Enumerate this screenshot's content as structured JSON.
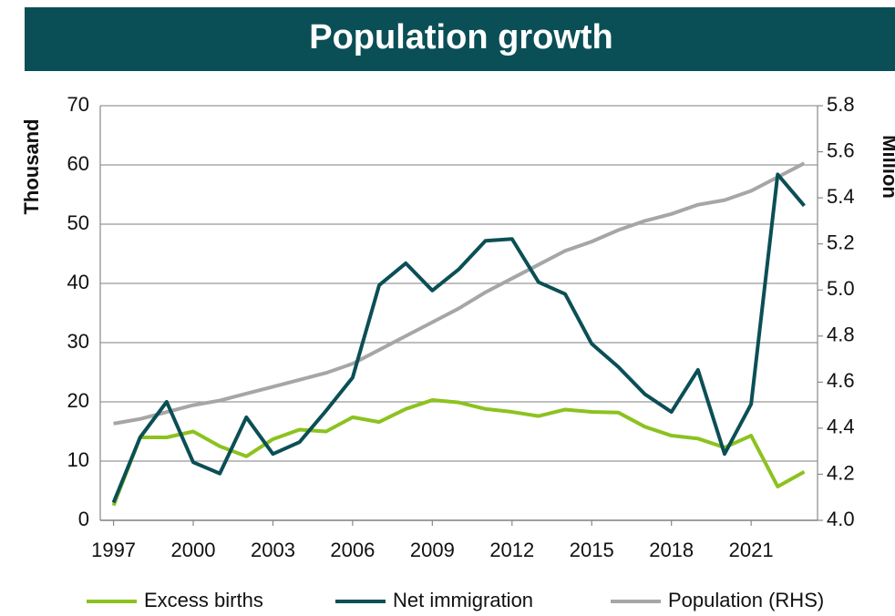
{
  "chart_data": {
    "type": "line",
    "title": "Population growth",
    "y_label": "Thousand",
    "y2_label": "Million",
    "x": [
      1997,
      1998,
      1999,
      2000,
      2001,
      2002,
      2003,
      2004,
      2005,
      2006,
      2007,
      2008,
      2009,
      2010,
      2011,
      2012,
      2013,
      2014,
      2015,
      2016,
      2017,
      2018,
      2019,
      2020,
      2021,
      2022,
      2023
    ],
    "xlim": [
      1996.5,
      2023.5
    ],
    "xticks": [
      1997,
      2000,
      2003,
      2006,
      2009,
      2012,
      2015,
      2018,
      2021
    ],
    "ylim": [
      0,
      70
    ],
    "yticks": [
      0,
      10,
      20,
      30,
      40,
      50,
      60,
      70
    ],
    "y2lim": [
      4.0,
      5.8
    ],
    "y2ticks": [
      {
        "value": 4.0,
        "label": "4.0"
      },
      4.2,
      4.4,
      4.6,
      4.8,
      {
        "value": 5.0,
        "label": "5.0"
      },
      5.2,
      5.4,
      5.6,
      5.8
    ],
    "grid": true,
    "legend": "bottom",
    "series": [
      {
        "name": "Excess births",
        "color": "#8cc21f",
        "values": [
          2.5,
          14,
          14,
          15,
          12.5,
          10.8,
          13.7,
          15.3,
          15,
          17.4,
          16.6,
          18.8,
          20.3,
          19.9,
          18.8,
          18.3,
          17.6,
          18.7,
          18.3,
          18.2,
          15.8,
          14.3,
          13.8,
          12.3,
          14.3,
          5.7,
          8.2
        ]
      },
      {
        "name": "Net immigration",
        "color": "#0b4f56",
        "values": [
          3,
          14,
          20,
          9.8,
          7.9,
          17.4,
          11.2,
          13.2,
          18.5,
          24.1,
          39.7,
          43.4,
          38.8,
          42.4,
          47.2,
          47.5,
          40.2,
          38.2,
          29.8,
          25.9,
          21.3,
          18.3,
          25.4,
          11.2,
          19.6,
          58.4,
          53.1
        ]
      },
      {
        "name": "Population (RHS)",
        "color": "#a6a6a6",
        "axis": "y2",
        "values": [
          4.42,
          4.44,
          4.47,
          4.5,
          4.52,
          4.55,
          4.58,
          4.61,
          4.64,
          4.68,
          4.74,
          4.8,
          4.86,
          4.92,
          4.99,
          5.05,
          5.11,
          5.17,
          5.21,
          5.26,
          5.3,
          5.33,
          5.37,
          5.39,
          5.43,
          5.49,
          5.55
        ]
      }
    ]
  }
}
